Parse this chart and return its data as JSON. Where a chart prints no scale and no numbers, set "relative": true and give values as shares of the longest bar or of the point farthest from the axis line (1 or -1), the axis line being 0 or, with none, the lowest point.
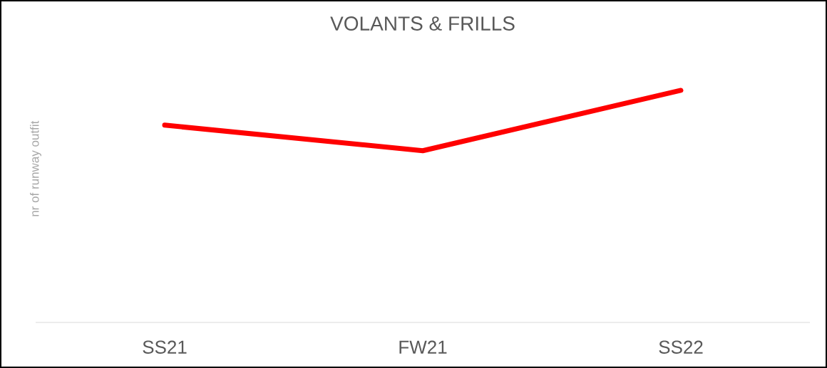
{
  "chart_data": {
    "type": "line",
    "title": "VOLANTS & FRILLS",
    "ylabel": "nr of runway outfit",
    "categories": [
      "SS21",
      "FW21",
      "SS22"
    ],
    "values": [
      0.85,
      0.74,
      1
    ],
    "color": "#ff0000",
    "relative": true,
    "marker": "none",
    "line_style": "solid"
  }
}
